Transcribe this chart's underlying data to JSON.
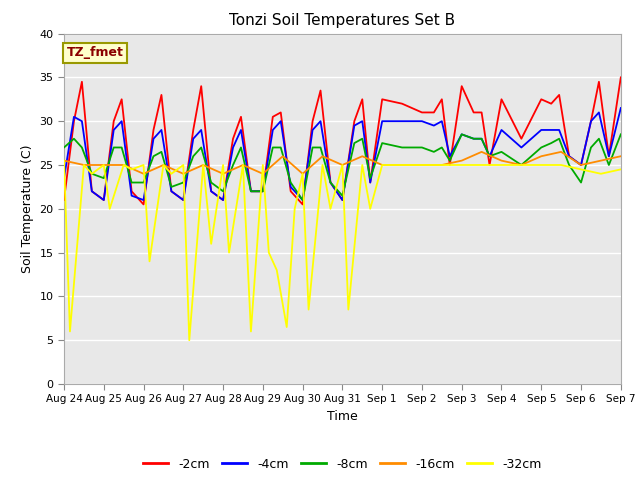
{
  "title": "Tonzi Soil Temperatures Set B",
  "xlabel": "Time",
  "ylabel": "Soil Temperature (C)",
  "ylim": [
    0,
    40
  ],
  "xlim": [
    0,
    14
  ],
  "xtick_labels": [
    "Aug 24",
    "Aug 25",
    "Aug 26",
    "Aug 27",
    "Aug 28",
    "Aug 29",
    "Aug 30",
    "Aug 31",
    "Sep 1",
    "Sep 2",
    "Sep 3",
    "Sep 4",
    "Sep 5",
    "Sep 6",
    "Sep 7"
  ],
  "xtick_positions": [
    0,
    1,
    2,
    3,
    4,
    5,
    6,
    7,
    8,
    9,
    10,
    11,
    12,
    13,
    14
  ],
  "ytick_positions": [
    0,
    5,
    10,
    15,
    20,
    25,
    30,
    35,
    40
  ],
  "bg_color": "#e8e8e8",
  "legend_label": "TZ_fmet",
  "series": {
    "neg2cm": {
      "label": "-2cm",
      "color": "#ff0000",
      "x": [
        0.0,
        0.25,
        0.45,
        0.7,
        1.0,
        1.25,
        1.45,
        1.7,
        2.0,
        2.25,
        2.45,
        2.7,
        3.0,
        3.25,
        3.45,
        3.7,
        4.0,
        4.25,
        4.45,
        4.7,
        5.0,
        5.25,
        5.45,
        5.7,
        6.0,
        6.25,
        6.45,
        6.7,
        7.0,
        7.3,
        7.5,
        7.7,
        8.0,
        8.5,
        9.0,
        9.3,
        9.5,
        9.7,
        10.0,
        10.3,
        10.5,
        10.7,
        11.0,
        11.5,
        12.0,
        12.25,
        12.45,
        12.7,
        13.0,
        13.25,
        13.45,
        13.7,
        14.0
      ],
      "y": [
        21,
        30,
        34.5,
        22,
        21,
        30,
        32.5,
        22,
        20.5,
        29,
        33,
        22,
        21,
        29,
        34,
        22,
        21,
        28,
        30.5,
        22,
        22,
        30.5,
        31,
        22,
        20.5,
        30,
        33.5,
        23,
        21,
        30,
        32.5,
        23,
        32.5,
        32,
        31,
        31,
        32.5,
        25,
        34,
        31,
        31,
        25,
        32.5,
        28,
        32.5,
        32,
        33,
        26,
        25,
        30,
        34.5,
        26,
        35
      ]
    },
    "neg4cm": {
      "label": "-4cm",
      "color": "#0000ff",
      "x": [
        0.0,
        0.25,
        0.45,
        0.7,
        1.0,
        1.25,
        1.45,
        1.7,
        2.0,
        2.25,
        2.45,
        2.7,
        3.0,
        3.25,
        3.45,
        3.7,
        4.0,
        4.25,
        4.45,
        4.7,
        5.0,
        5.25,
        5.45,
        5.7,
        6.0,
        6.25,
        6.45,
        6.7,
        7.0,
        7.3,
        7.5,
        7.7,
        8.0,
        8.5,
        9.0,
        9.3,
        9.5,
        9.7,
        10.0,
        10.3,
        10.5,
        10.7,
        11.0,
        11.5,
        12.0,
        12.25,
        12.45,
        12.7,
        13.0,
        13.25,
        13.45,
        13.7,
        14.0
      ],
      "y": [
        23.5,
        30.5,
        30,
        22,
        21,
        29,
        30,
        21.5,
        21,
        28,
        29,
        22,
        21,
        28,
        29,
        22,
        21,
        27,
        29,
        22,
        22,
        29,
        30,
        22.5,
        21,
        29,
        30,
        23,
        21,
        29.5,
        30,
        23,
        30,
        30,
        30,
        29.5,
        30,
        26,
        28.5,
        28,
        28,
        26,
        29,
        27,
        29,
        29,
        29,
        26,
        25,
        30,
        31,
        26,
        31.5
      ]
    },
    "neg8cm": {
      "label": "-8cm",
      "color": "#00aa00",
      "x": [
        0.0,
        0.25,
        0.45,
        0.7,
        1.0,
        1.25,
        1.45,
        1.7,
        2.0,
        2.25,
        2.45,
        2.7,
        3.0,
        3.25,
        3.45,
        3.7,
        4.0,
        4.25,
        4.45,
        4.7,
        5.0,
        5.25,
        5.45,
        5.7,
        6.0,
        6.25,
        6.45,
        6.7,
        7.0,
        7.3,
        7.5,
        7.7,
        8.0,
        8.5,
        9.0,
        9.3,
        9.5,
        9.7,
        10.0,
        10.3,
        10.5,
        10.7,
        11.0,
        11.5,
        12.0,
        12.25,
        12.45,
        12.7,
        13.0,
        13.25,
        13.45,
        13.7,
        14.0
      ],
      "y": [
        27,
        28,
        27,
        24,
        23.5,
        27,
        27,
        23,
        23,
        26,
        26.5,
        22.5,
        23,
        26,
        27,
        23,
        22,
        25,
        27,
        22,
        22,
        27,
        27,
        23,
        21,
        27,
        27,
        23,
        21.5,
        27.5,
        28,
        23.5,
        27.5,
        27,
        27,
        26.5,
        27,
        25.5,
        28.5,
        28,
        28,
        26,
        26.5,
        25,
        27,
        27.5,
        28,
        25,
        23,
        27,
        28,
        25,
        28.5
      ]
    },
    "neg16cm": {
      "label": "-16cm",
      "color": "#ff8c00",
      "x": [
        0.0,
        0.5,
        1.0,
        1.5,
        2.0,
        2.5,
        3.0,
        3.5,
        4.0,
        4.5,
        5.0,
        5.5,
        6.0,
        6.5,
        7.0,
        7.5,
        8.0,
        8.5,
        9.0,
        9.5,
        10.0,
        10.5,
        11.0,
        11.5,
        12.0,
        12.5,
        13.0,
        13.5,
        14.0
      ],
      "y": [
        25.5,
        25,
        25,
        25,
        24,
        25,
        24,
        25,
        24,
        25,
        24,
        26,
        24,
        26,
        25,
        26,
        25,
        25,
        25,
        25,
        25.5,
        26.5,
        25.5,
        25,
        26,
        26.5,
        25,
        25.5,
        26
      ]
    },
    "neg32cm": {
      "label": "-32cm",
      "color": "#ffff00",
      "x": [
        0.0,
        0.15,
        0.5,
        0.7,
        1.0,
        1.15,
        1.5,
        1.7,
        2.0,
        2.15,
        2.5,
        2.7,
        3.0,
        3.15,
        3.5,
        3.7,
        4.0,
        4.15,
        4.5,
        4.7,
        5.0,
        5.15,
        5.35,
        5.6,
        5.8,
        6.0,
        6.15,
        6.5,
        6.7,
        7.0,
        7.15,
        7.5,
        7.7,
        8.0,
        8.5,
        9.0,
        9.5,
        10.0,
        10.5,
        11.0,
        11.5,
        12.0,
        12.5,
        13.0,
        13.5,
        14.0
      ],
      "y": [
        25.5,
        6,
        25,
        24,
        25,
        20,
        25,
        24.5,
        25,
        14,
        25,
        24,
        25,
        5,
        25,
        16,
        25,
        15,
        25,
        6,
        25,
        15,
        13,
        6.5,
        20,
        24,
        8.5,
        25,
        20,
        25,
        8.5,
        25,
        20,
        25,
        25,
        25,
        25,
        25,
        25,
        25,
        25,
        25,
        25,
        24.5,
        24,
        24.5
      ]
    }
  }
}
